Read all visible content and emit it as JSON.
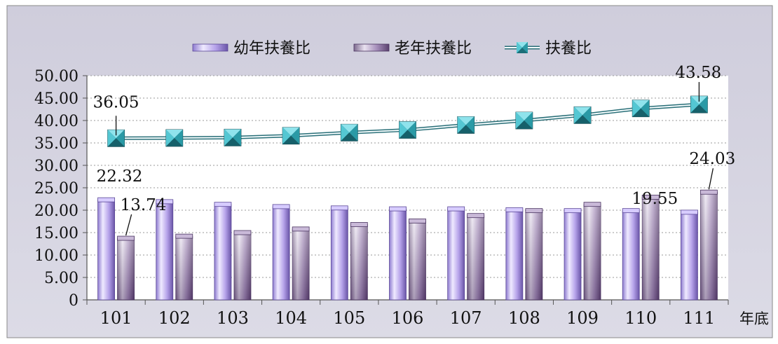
{
  "chart_data": {
    "type": "bar",
    "categories": [
      "101",
      "102",
      "103",
      "104",
      "105",
      "106",
      "107",
      "108",
      "109",
      "110",
      "111"
    ],
    "xlabel": "年底",
    "ylim": [
      0,
      50
    ],
    "yticks": [
      "0",
      "5.00",
      "10.00",
      "15.00",
      "20.00",
      "25.00",
      "30.00",
      "35.00",
      "40.00",
      "45.00",
      "50.00"
    ],
    "grid": true,
    "legend_position": "top",
    "series": [
      {
        "name": "幼年扶養比",
        "kind": "bar",
        "color": "#b8a6e8",
        "values": [
          22.32,
          21.9,
          21.3,
          20.8,
          20.5,
          20.3,
          20.3,
          20.1,
          19.9,
          19.9,
          19.55
        ]
      },
      {
        "name": "老年扶養比",
        "kind": "bar",
        "color": "#9b86b0",
        "values": [
          13.74,
          14.2,
          15.0,
          15.8,
          16.8,
          17.6,
          18.8,
          19.9,
          21.3,
          22.9,
          24.03
        ]
      },
      {
        "name": "扶養比",
        "kind": "line",
        "color": "#2fb3c4",
        "values": [
          36.05,
          36.1,
          36.2,
          36.6,
          37.3,
          37.9,
          39.0,
          40.0,
          41.2,
          42.7,
          43.58
        ]
      }
    ],
    "data_labels": [
      {
        "text": "36.05",
        "series": 2,
        "index": 0
      },
      {
        "text": "22.32",
        "series": 0,
        "index": 0
      },
      {
        "text": "13.74",
        "series": 1,
        "index": 0
      },
      {
        "text": "43.58",
        "series": 2,
        "index": 10
      },
      {
        "text": "19.55",
        "series": 0,
        "index": 10
      },
      {
        "text": "24.03",
        "series": 1,
        "index": 10
      }
    ]
  }
}
